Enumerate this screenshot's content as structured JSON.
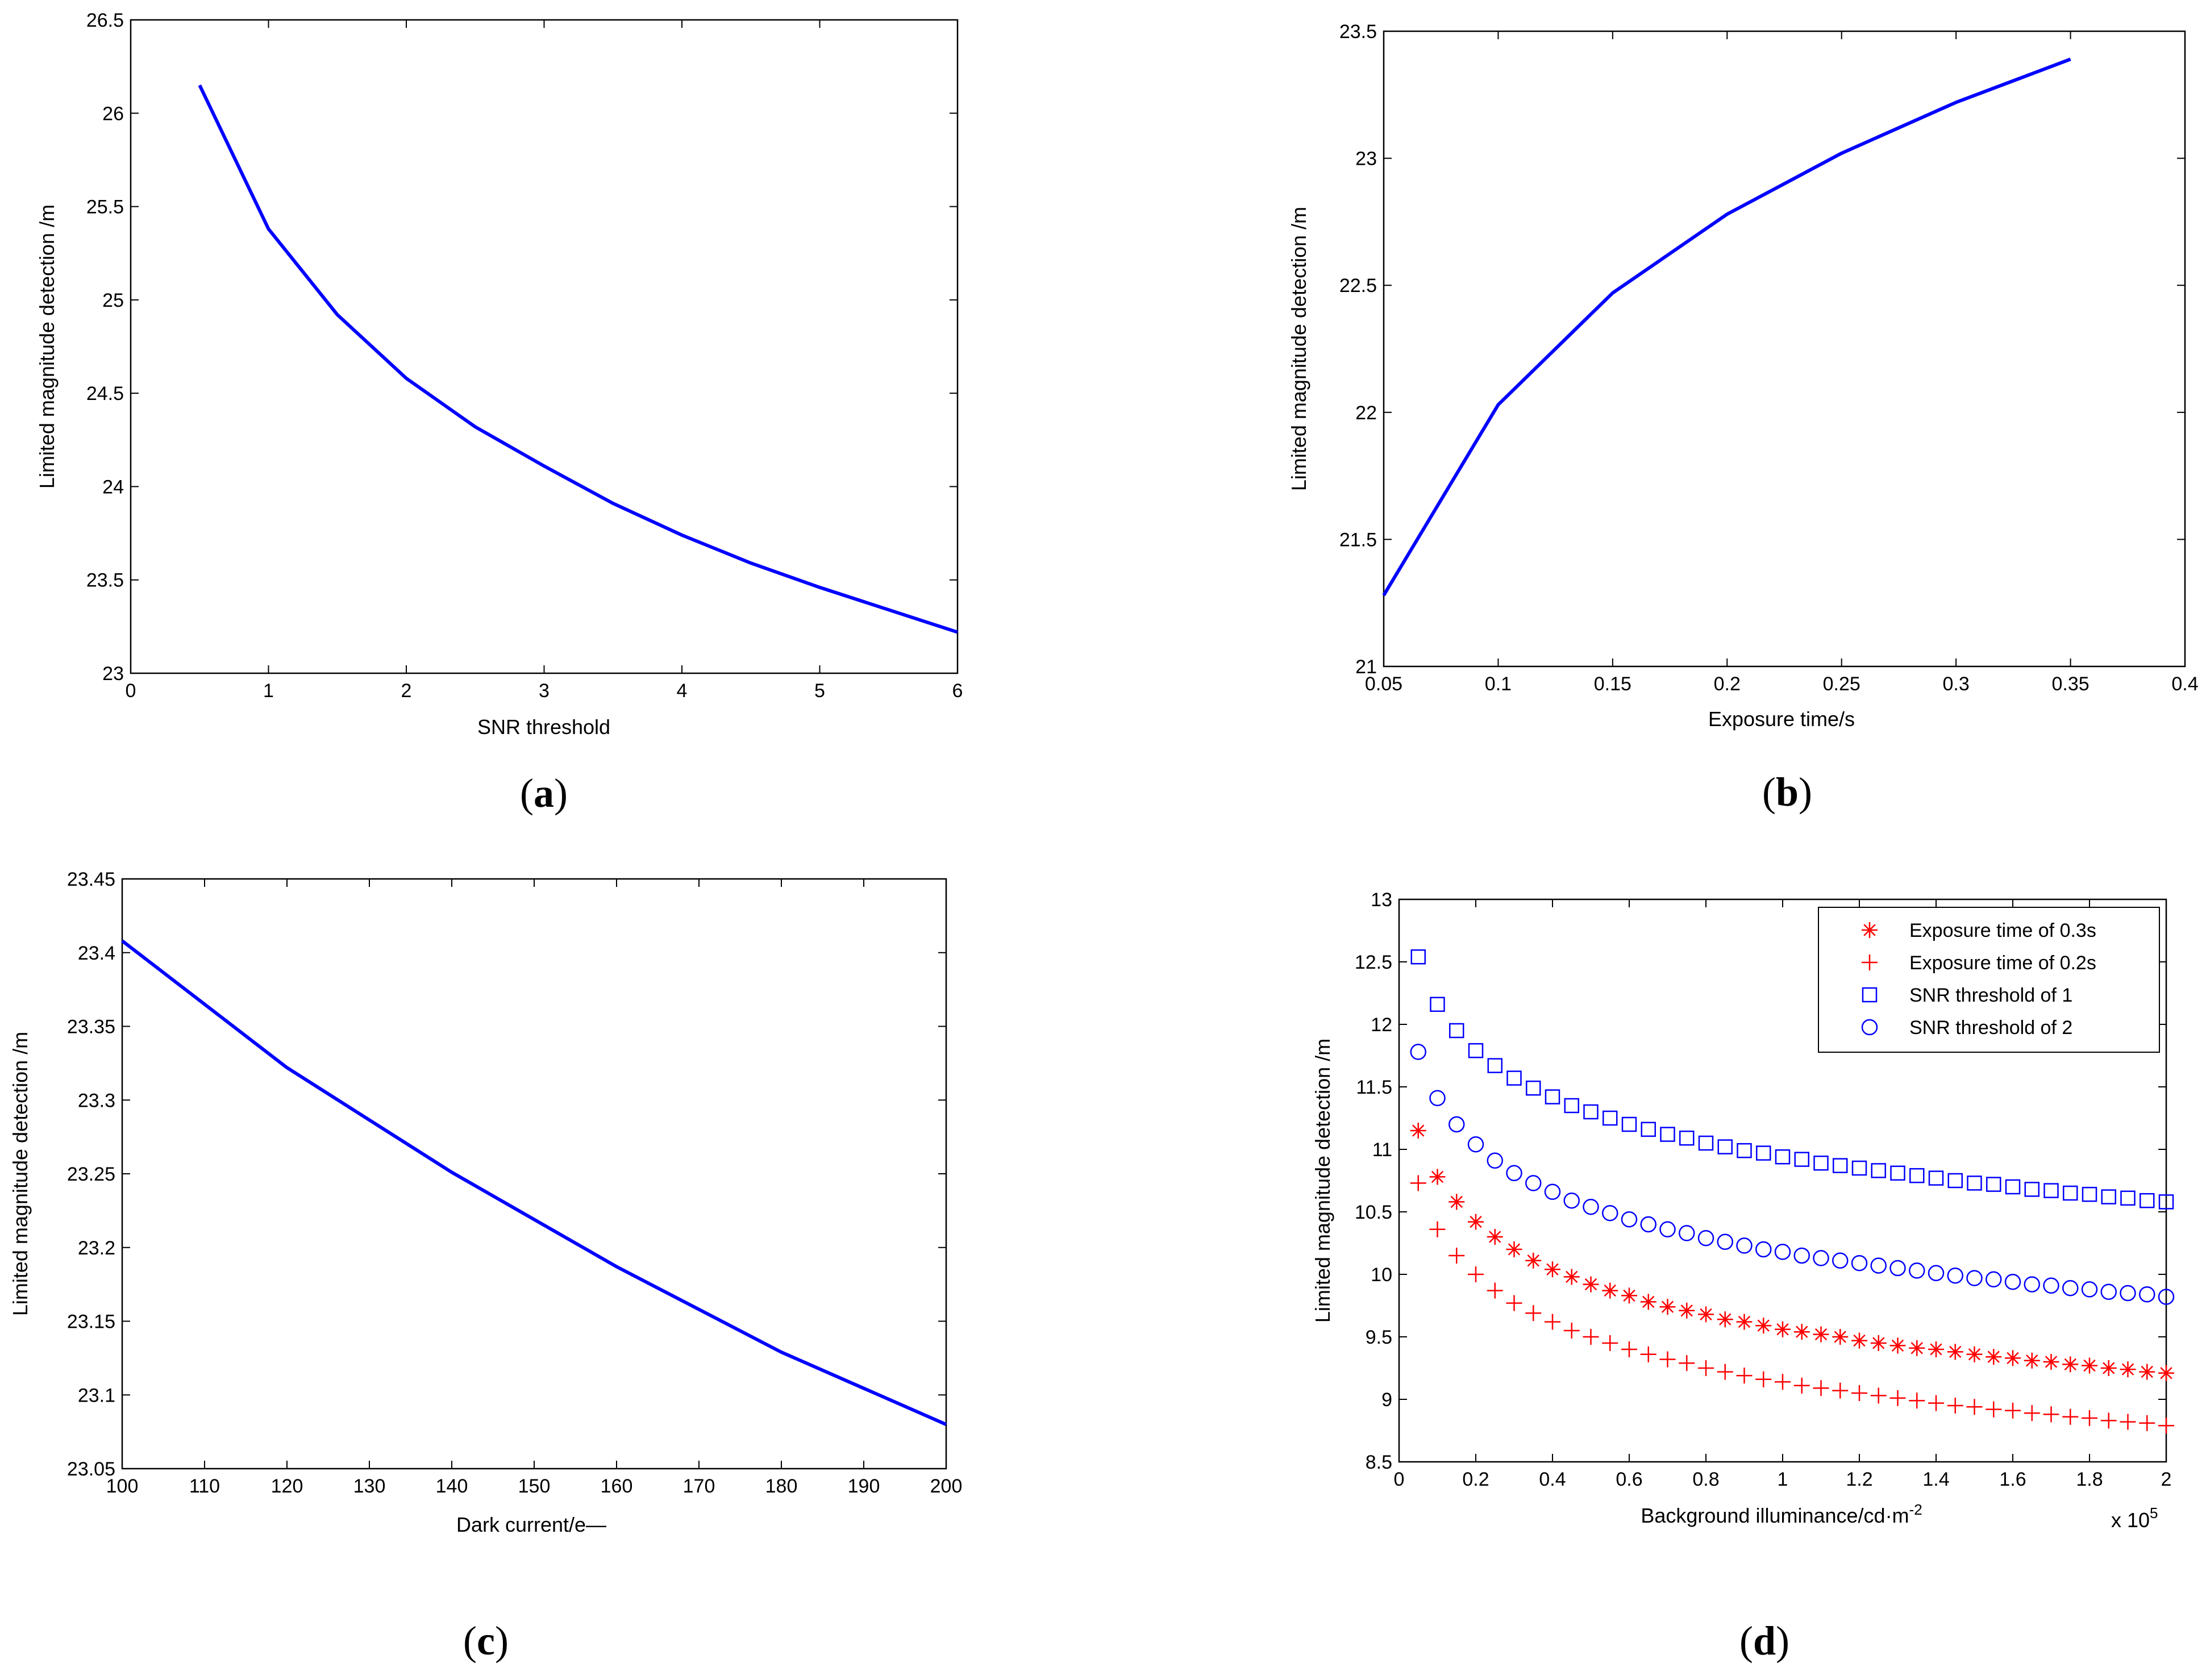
{
  "panels": [
    {
      "caption_open": "(",
      "caption_letter": "a",
      "caption_close": ")",
      "chart_data": {
        "type": "line",
        "xlabel": "SNR threshold",
        "ylabel": "Limited magnitude detection  /m",
        "xlim": [
          0,
          6
        ],
        "ylim": [
          23,
          26.5
        ],
        "xticks": [
          0,
          1,
          2,
          3,
          4,
          5,
          6
        ],
        "xtick_labels": [
          "0",
          "1",
          "2",
          "3",
          "4",
          "5",
          "6"
        ],
        "yticks": [
          23,
          23.5,
          24,
          24.5,
          25,
          25.5,
          26,
          26.5
        ],
        "ytick_labels": [
          "23",
          "23.5",
          "24",
          "24.5",
          "25",
          "25.5",
          "26",
          "26.5"
        ],
        "series": [
          {
            "name": "limited magnitude",
            "color": "#0000ff",
            "style": "line",
            "x": [
              0.5,
              1,
              1.5,
              2,
              2.5,
              3,
              3.5,
              4,
              4.5,
              5,
              5.5,
              6
            ],
            "y": [
              26.15,
              25.38,
              24.92,
              24.58,
              24.32,
              24.11,
              23.91,
              23.74,
              23.59,
              23.46,
              23.34,
              23.22
            ]
          }
        ]
      }
    },
    {
      "caption_open": "(",
      "caption_letter": "b",
      "caption_close": ")",
      "chart_data": {
        "type": "line",
        "xlabel": "Exposure time/s",
        "ylabel": "Limited magnitude detection /m",
        "xlim": [
          0.05,
          0.4
        ],
        "ylim": [
          21,
          23.5
        ],
        "xticks": [
          0.05,
          0.1,
          0.15,
          0.2,
          0.25,
          0.3,
          0.35,
          0.4
        ],
        "xtick_labels": [
          "0.05",
          "0.1",
          "0.15",
          "0.2",
          "0.25",
          "0.3",
          "0.35",
          "0.4"
        ],
        "yticks": [
          21,
          21.5,
          22,
          22.5,
          23,
          23.5
        ],
        "ytick_labels": [
          "21",
          "21.5",
          "22",
          "22.5",
          "23",
          "23.5"
        ],
        "series": [
          {
            "name": "limited magnitude",
            "color": "#0000ff",
            "style": "line",
            "x": [
              0.05,
              0.1,
              0.15,
              0.2,
              0.25,
              0.3,
              0.35
            ],
            "y": [
              21.28,
              22.03,
              22.47,
              22.78,
              23.02,
              23.22,
              23.39
            ]
          }
        ]
      }
    },
    {
      "caption_open": "(",
      "caption_letter": "c",
      "caption_close": ")",
      "chart_data": {
        "type": "line",
        "xlabel": "Dark current/e—",
        "ylabel": "Limited magnitude detection /m",
        "xlim": [
          100,
          200
        ],
        "ylim": [
          23.05,
          23.45
        ],
        "xticks": [
          100,
          110,
          120,
          130,
          140,
          150,
          160,
          170,
          180,
          190,
          200
        ],
        "xtick_labels": [
          "100",
          "110",
          "120",
          "130",
          "140",
          "150",
          "160",
          "170",
          "180",
          "190",
          "200"
        ],
        "yticks": [
          23.05,
          23.1,
          23.15,
          23.2,
          23.25,
          23.3,
          23.35,
          23.4,
          23.45
        ],
        "ytick_labels": [
          "23.05",
          "23.1",
          "23.15",
          "23.2",
          "23.25",
          "23.3",
          "23.35",
          "23.4",
          "23.45"
        ],
        "series": [
          {
            "name": "limited magnitude",
            "color": "#0000ff",
            "style": "line",
            "x": [
              100,
              120,
              140,
              160,
              180,
              200
            ],
            "y": [
              23.408,
              23.322,
              23.251,
              23.187,
              23.129,
              23.08
            ]
          }
        ]
      }
    },
    {
      "caption_open": "(",
      "caption_letter": "d",
      "caption_close": ")",
      "chart_data": {
        "type": "scatter",
        "xlabel": "Background illuminance/cd·m",
        "xlabel_sup": "-2",
        "ylabel": "Limited magnitude detection /m",
        "x_multiplier_base": "x 10",
        "x_multiplier_exp": "5",
        "xlim": [
          0,
          2
        ],
        "ylim": [
          8.5,
          13
        ],
        "xticks": [
          0,
          0.2,
          0.4,
          0.6,
          0.8,
          1,
          1.2,
          1.4,
          1.6,
          1.8,
          2
        ],
        "xtick_labels": [
          "0",
          "0.2",
          "0.4",
          "0.6",
          "0.8",
          "1",
          "1.2",
          "1.4",
          "1.6",
          "1.8",
          "2"
        ],
        "yticks": [
          8.5,
          9,
          9.5,
          10,
          10.5,
          11,
          11.5,
          12,
          12.5,
          13
        ],
        "ytick_labels": [
          "8.5",
          "9",
          "9.5",
          "10",
          "10.5",
          "11",
          "11.5",
          "12",
          "12.5",
          "13"
        ],
        "legend_position": "top-right",
        "x": [
          0.05,
          0.1,
          0.15,
          0.2,
          0.25,
          0.3,
          0.35,
          0.4,
          0.45,
          0.5,
          0.55,
          0.6,
          0.65,
          0.7,
          0.75,
          0.8,
          0.85,
          0.9,
          0.95,
          1.0,
          1.05,
          1.1,
          1.15,
          1.2,
          1.25,
          1.3,
          1.35,
          1.4,
          1.45,
          1.5,
          1.55,
          1.6,
          1.65,
          1.7,
          1.75,
          1.8,
          1.85,
          1.9,
          1.95,
          2.0
        ],
        "series": [
          {
            "name": "Exposure time of 0.3s",
            "color": "#ff0000",
            "marker": "asterisk",
            "values": [
              11.15,
              10.78,
              10.58,
              10.42,
              10.3,
              10.2,
              10.11,
              10.04,
              9.98,
              9.92,
              9.87,
              9.83,
              9.78,
              9.74,
              9.71,
              9.68,
              9.64,
              9.62,
              9.59,
              9.56,
              9.54,
              9.52,
              9.5,
              9.47,
              9.45,
              9.43,
              9.41,
              9.4,
              9.38,
              9.36,
              9.34,
              9.33,
              9.31,
              9.3,
              9.28,
              9.27,
              9.25,
              9.24,
              9.22,
              9.21
            ]
          },
          {
            "name": "Exposure time of 0.2s",
            "color": "#ff0000",
            "marker": "plus",
            "values": [
              10.73,
              10.36,
              10.15,
              10.0,
              9.87,
              9.77,
              9.69,
              9.62,
              9.55,
              9.5,
              9.45,
              9.4,
              9.36,
              9.32,
              9.29,
              9.25,
              9.22,
              9.19,
              9.16,
              9.14,
              9.11,
              9.09,
              9.07,
              9.05,
              9.03,
              9.01,
              8.99,
              8.97,
              8.95,
              8.94,
              8.92,
              8.91,
              8.89,
              8.88,
              8.86,
              8.85,
              8.83,
              8.82,
              8.81,
              8.79
            ]
          },
          {
            "name": "SNR threshold of 1",
            "color": "#0000ff",
            "marker": "square",
            "values": [
              12.54,
              12.16,
              11.95,
              11.79,
              11.67,
              11.57,
              11.49,
              11.42,
              11.35,
              11.3,
              11.25,
              11.2,
              11.16,
              11.12,
              11.09,
              11.05,
              11.02,
              10.99,
              10.97,
              10.94,
              10.92,
              10.89,
              10.87,
              10.85,
              10.83,
              10.81,
              10.79,
              10.77,
              10.75,
              10.73,
              10.72,
              10.7,
              10.68,
              10.67,
              10.65,
              10.64,
              10.62,
              10.61,
              10.59,
              10.58
            ]
          },
          {
            "name": "SNR threshold of 2",
            "color": "#0000ff",
            "marker": "circle",
            "values": [
              11.78,
              11.41,
              11.2,
              11.04,
              10.91,
              10.81,
              10.73,
              10.66,
              10.59,
              10.54,
              10.49,
              10.44,
              10.4,
              10.36,
              10.33,
              10.29,
              10.26,
              10.23,
              10.2,
              10.18,
              10.15,
              10.13,
              10.11,
              10.09,
              10.07,
              10.05,
              10.03,
              10.01,
              9.99,
              9.97,
              9.96,
              9.94,
              9.92,
              9.91,
              9.89,
              9.88,
              9.86,
              9.85,
              9.84,
              9.82
            ]
          }
        ]
      }
    }
  ]
}
